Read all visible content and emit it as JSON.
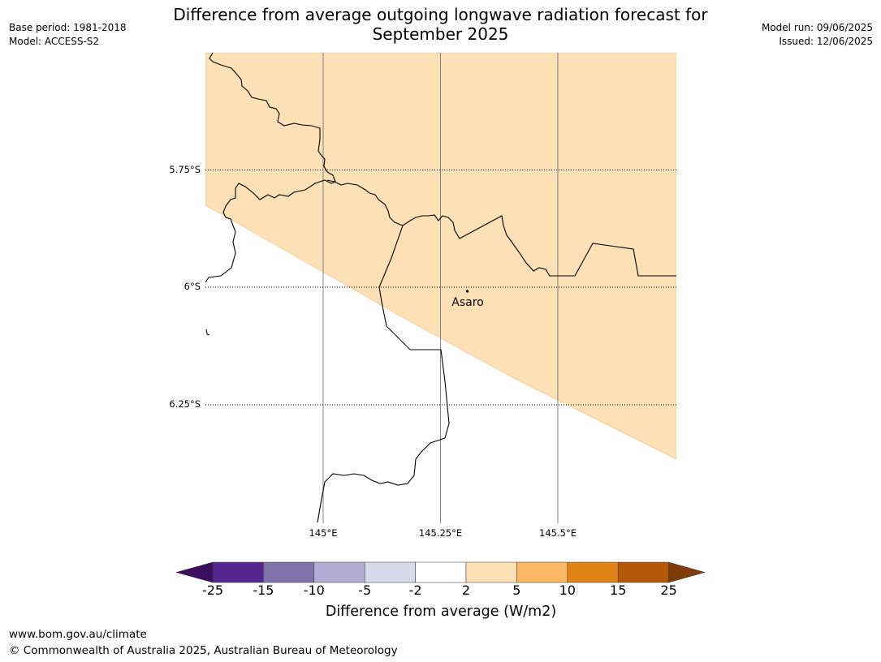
{
  "title_line1": "Difference from average outgoing longwave radiation forecast for",
  "title_line2": "September 2025",
  "meta_left": {
    "base_period": "Base period: 1981-2018",
    "model": "Model: ACCESS-S2"
  },
  "meta_right": {
    "model_run": "Model run: 09/06/2025",
    "issued": "Issued: 12/06/2025"
  },
  "map": {
    "latitude_ticks": [
      "5.75°S",
      "6°S",
      "6.25°S"
    ],
    "longitude_ticks": [
      "145°E",
      "145.25°E",
      "145.5°E"
    ],
    "place": {
      "name": "Asaro"
    }
  },
  "legend": {
    "title": "Difference from average (W/m2)",
    "tick_labels": [
      "-25",
      "-15",
      "-10",
      "-5",
      "-2",
      "2",
      "5",
      "10",
      "15",
      "25"
    ],
    "colors": [
      "#3b0f5e",
      "#54278f",
      "#8073ac",
      "#b2abd2",
      "#d8daeb",
      "#ffffff",
      "#fee0b6",
      "#fdb863",
      "#e08214",
      "#b35806",
      "#7f3b08"
    ]
  },
  "footer": {
    "url": "www.bom.gov.au/climate",
    "copyright": "© Commonwealth of Australia 2025, Australian Bureau of Meteorology"
  }
}
